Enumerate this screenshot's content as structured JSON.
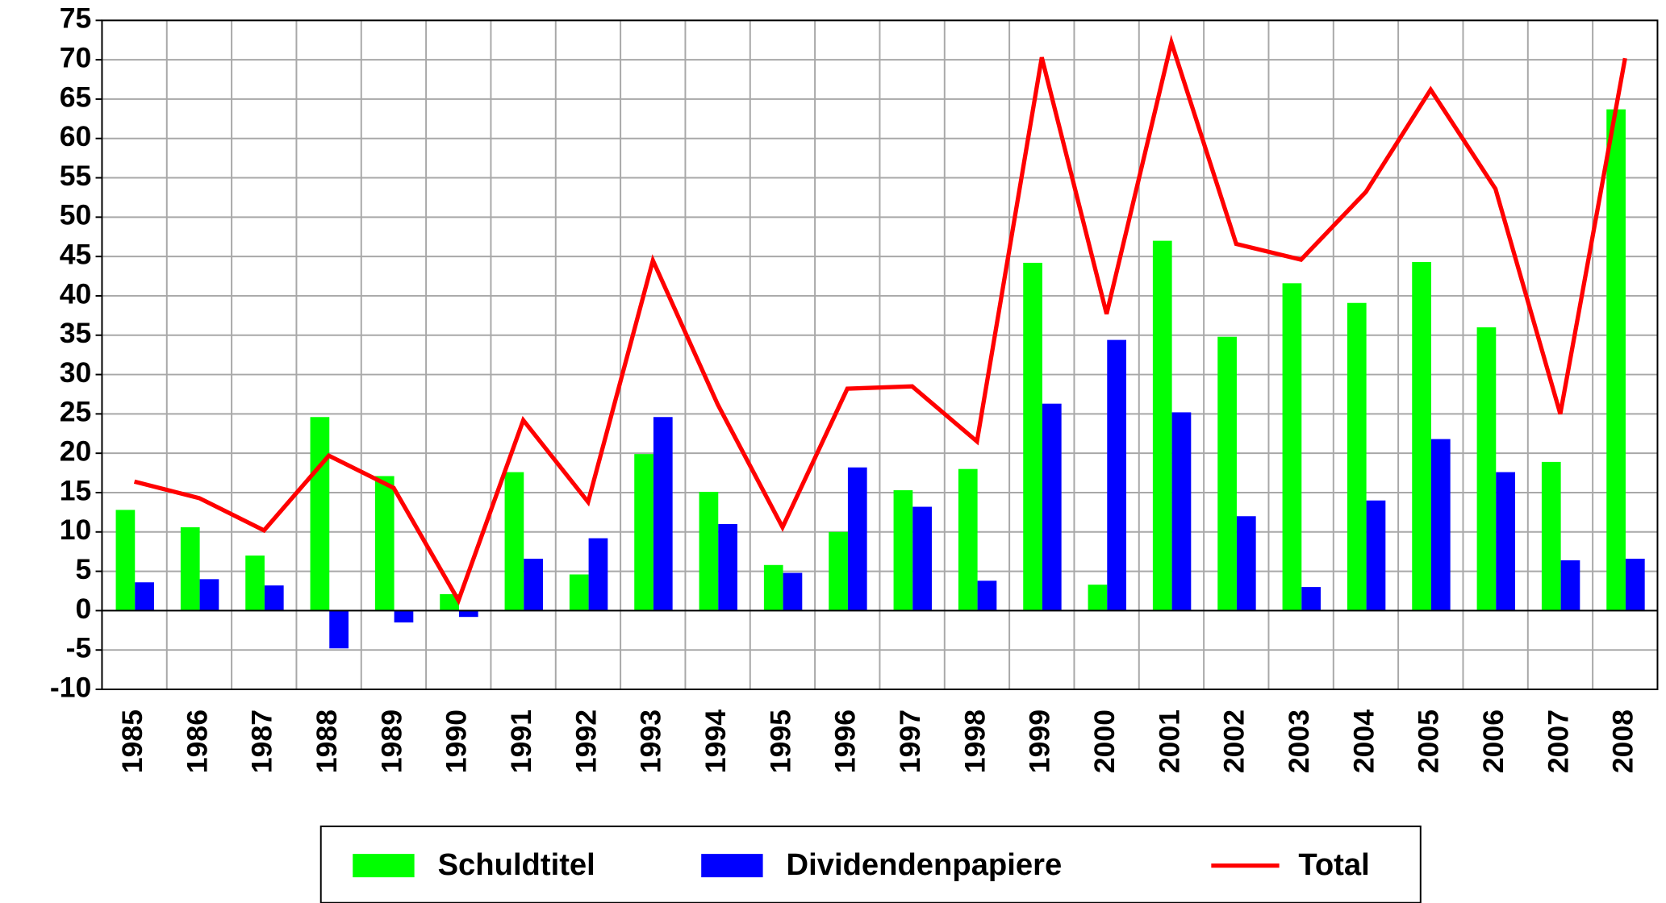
{
  "chart_data": {
    "type": "bar",
    "categories": [
      "1985",
      "1986",
      "1987",
      "1988",
      "1989",
      "1990",
      "1991",
      "1992",
      "1993",
      "1994",
      "1995",
      "1996",
      "1997",
      "1998",
      "1999",
      "2000",
      "2001",
      "2002",
      "2003",
      "2004",
      "2005",
      "2006",
      "2007",
      "2008"
    ],
    "series": [
      {
        "name": "Schuldtitel",
        "type": "bar",
        "color": "#00ff00",
        "values": [
          12.8,
          10.6,
          7.0,
          24.6,
          17.1,
          2.1,
          17.6,
          4.6,
          19.9,
          15.1,
          5.8,
          10.0,
          15.3,
          18.0,
          44.2,
          3.3,
          47.0,
          34.8,
          41.6,
          39.1,
          44.3,
          36.0,
          18.9,
          63.7
        ]
      },
      {
        "name": "Dividendenpapiere",
        "type": "bar",
        "color": "#0000ff",
        "values": [
          3.6,
          4.0,
          3.2,
          -4.8,
          -1.5,
          -0.8,
          6.6,
          9.2,
          24.6,
          11.0,
          4.8,
          18.2,
          13.2,
          3.8,
          26.3,
          34.4,
          25.2,
          12.0,
          3.0,
          14.0,
          21.8,
          17.6,
          6.4,
          6.6
        ]
      },
      {
        "name": "Total",
        "type": "line",
        "color": "#ff0000",
        "values": [
          16.4,
          14.3,
          10.2,
          19.7,
          15.6,
          1.3,
          24.2,
          13.8,
          44.5,
          26.2,
          10.6,
          28.2,
          28.5,
          21.5,
          70.3,
          37.7,
          72.2,
          46.6,
          44.6,
          53.2,
          66.2,
          53.6,
          25.0,
          70.2
        ]
      }
    ],
    "ylim": [
      -10,
      75
    ],
    "yticks": [
      -10,
      -5,
      0,
      5,
      10,
      15,
      20,
      25,
      30,
      35,
      40,
      45,
      50,
      55,
      60,
      65,
      70,
      75
    ],
    "grid": true,
    "legend": "bottom"
  }
}
